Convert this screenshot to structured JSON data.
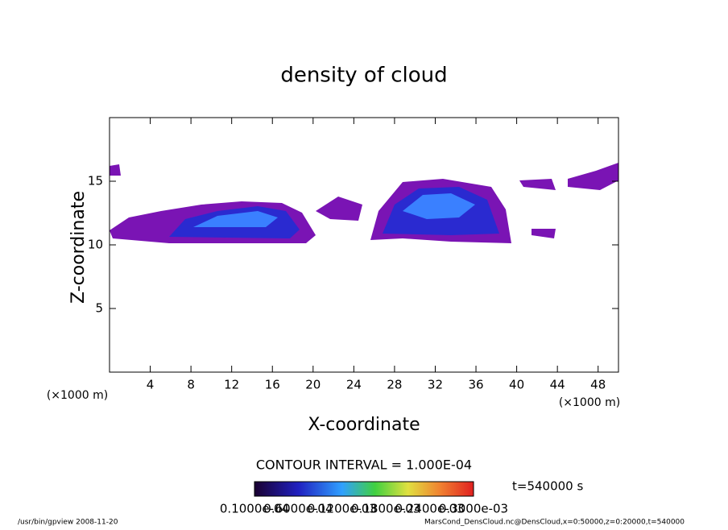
{
  "chart_data": {
    "type": "contour",
    "title": "density of cloud",
    "x_label": "X-coordinate",
    "y_label": "Z-coordinate",
    "x_unit_labels": [
      "(×1000 m)",
      "(×1000 m)"
    ],
    "xlim": [
      0,
      50
    ],
    "xticks": [
      4,
      8,
      12,
      16,
      20,
      24,
      28,
      32,
      36,
      40,
      44,
      48
    ],
    "ylim": [
      0,
      20
    ],
    "yticks": [
      5,
      10,
      15
    ],
    "contour_interval": "CONTOUR INTERVAL = 1.000E-04",
    "time_label": "t=540000 s",
    "colorbar_labels": [
      "0.1000e-04",
      "0.6000e-04",
      "0.1200e-03",
      "0.1800e-03",
      "0.2400e-03",
      "0.3000e-03"
    ],
    "footer_left": "/usr/bin/gpview   2008-11-20",
    "footer_right": "MarsCond_DensCloud.nc@DensCloud,x=0:50000,z=0:20000,t=540000"
  }
}
